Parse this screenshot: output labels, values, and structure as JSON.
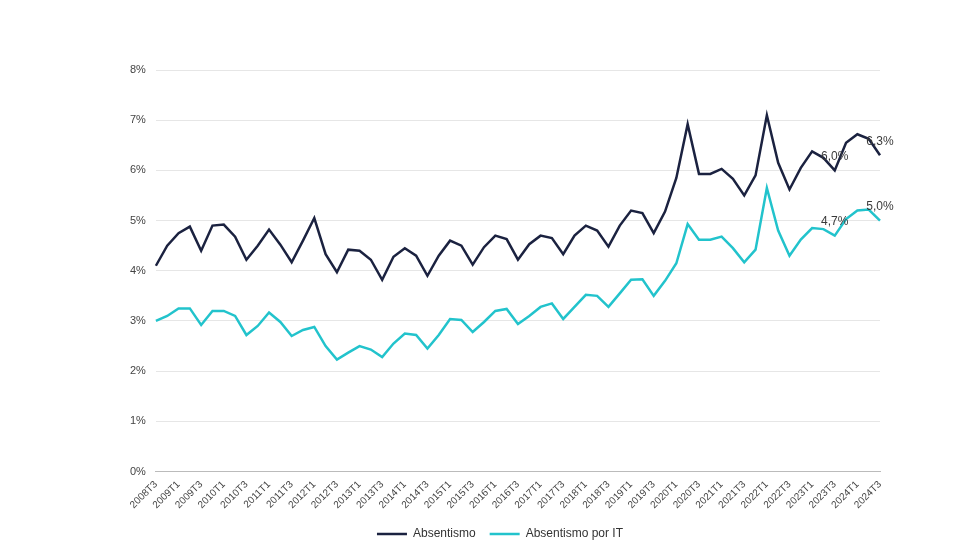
{
  "chart_data": {
    "type": "line",
    "categories": [
      "2008T3",
      null,
      "2009T1",
      null,
      "2009T3",
      null,
      "2010T1",
      null,
      "2010T3",
      null,
      "2011T1",
      null,
      "2011T3",
      null,
      "2012T1",
      null,
      "2012T3",
      null,
      "2013T1",
      null,
      "2013T3",
      null,
      "2014T1",
      null,
      "2014T3",
      null,
      "2015T1",
      null,
      "2015T3",
      null,
      "2016T1",
      null,
      "2016T3",
      null,
      "2017T1",
      null,
      "2017T3",
      null,
      "2018T1",
      null,
      "2018T3",
      null,
      "2019T1",
      null,
      "2019T3",
      null,
      "2020T1",
      null,
      "2020T3",
      null,
      "2021T1",
      null,
      "2021T3",
      null,
      "2022T1",
      null,
      "2022T3",
      null,
      "2023T1",
      null,
      "2023T3",
      null,
      "2024T1",
      null,
      "2024T3"
    ],
    "series": [
      {
        "name": "Absentismo",
        "color": "#1b2240",
        "values": [
          4.1,
          4.5,
          4.75,
          4.88,
          4.4,
          4.9,
          4.92,
          4.68,
          4.22,
          4.5,
          4.82,
          4.52,
          4.17,
          4.6,
          5.05,
          4.33,
          3.97,
          4.42,
          4.4,
          4.22,
          3.82,
          4.28,
          4.45,
          4.3,
          3.9,
          4.3,
          4.6,
          4.5,
          4.12,
          4.47,
          4.7,
          4.63,
          4.22,
          4.53,
          4.7,
          4.65,
          4.33,
          4.7,
          4.9,
          4.8,
          4.48,
          4.9,
          5.2,
          5.15,
          4.75,
          5.18,
          5.85,
          6.92,
          5.93,
          5.93,
          6.03,
          5.83,
          5.5,
          5.9,
          7.1,
          6.15,
          5.62,
          6.05,
          6.38,
          6.25,
          6.0,
          6.55,
          6.72,
          6.63,
          6.3
        ],
        "value_labels": [
          null,
          null,
          null,
          null,
          null,
          null,
          null,
          null,
          null,
          null,
          null,
          null,
          null,
          null,
          null,
          null,
          null,
          null,
          null,
          null,
          null,
          null,
          null,
          null,
          null,
          null,
          null,
          null,
          null,
          null,
          null,
          null,
          null,
          null,
          null,
          null,
          null,
          null,
          null,
          null,
          null,
          null,
          null,
          null,
          null,
          null,
          null,
          null,
          null,
          null,
          null,
          null,
          null,
          null,
          null,
          null,
          null,
          null,
          null,
          null,
          "6,0%",
          null,
          null,
          null,
          "6,3%"
        ]
      },
      {
        "name": "Absentismo por IT",
        "color": "#22c3cc",
        "values": [
          3.0,
          3.1,
          3.25,
          3.25,
          2.92,
          3.2,
          3.2,
          3.1,
          2.72,
          2.9,
          3.17,
          2.98,
          2.7,
          2.82,
          2.88,
          2.5,
          2.23,
          2.37,
          2.5,
          2.43,
          2.28,
          2.55,
          2.75,
          2.72,
          2.45,
          2.72,
          3.04,
          3.02,
          2.78,
          2.98,
          3.2,
          3.24,
          2.94,
          3.1,
          3.28,
          3.35,
          3.04,
          3.28,
          3.52,
          3.5,
          3.28,
          3.55,
          3.82,
          3.83,
          3.5,
          3.8,
          4.15,
          4.93,
          4.62,
          4.62,
          4.68,
          4.45,
          4.17,
          4.42,
          5.65,
          4.8,
          4.3,
          4.62,
          4.85,
          4.83,
          4.7,
          5.03,
          5.2,
          5.22,
          5.0
        ],
        "value_labels": [
          null,
          null,
          null,
          null,
          null,
          null,
          null,
          null,
          null,
          null,
          null,
          null,
          null,
          null,
          null,
          null,
          null,
          null,
          null,
          null,
          null,
          null,
          null,
          null,
          null,
          null,
          null,
          null,
          null,
          null,
          null,
          null,
          null,
          null,
          null,
          null,
          null,
          null,
          null,
          null,
          null,
          null,
          null,
          null,
          null,
          null,
          null,
          null,
          null,
          null,
          null,
          null,
          null,
          null,
          null,
          null,
          null,
          null,
          null,
          null,
          "4,7%",
          null,
          null,
          null,
          "5,0%"
        ]
      }
    ],
    "ylim": [
      0,
      8
    ],
    "yticks": [
      {
        "value": 0,
        "label": "0%"
      },
      {
        "value": 1,
        "label": "1%"
      },
      {
        "value": 2,
        "label": "2%"
      },
      {
        "value": 3,
        "label": "3%"
      },
      {
        "value": 4,
        "label": "4%"
      },
      {
        "value": 5,
        "label": "5%"
      },
      {
        "value": 6,
        "label": "6%"
      },
      {
        "value": 7,
        "label": "7%"
      },
      {
        "value": 8,
        "label": "8%"
      }
    ],
    "grid": true,
    "legend": "bottom"
  }
}
